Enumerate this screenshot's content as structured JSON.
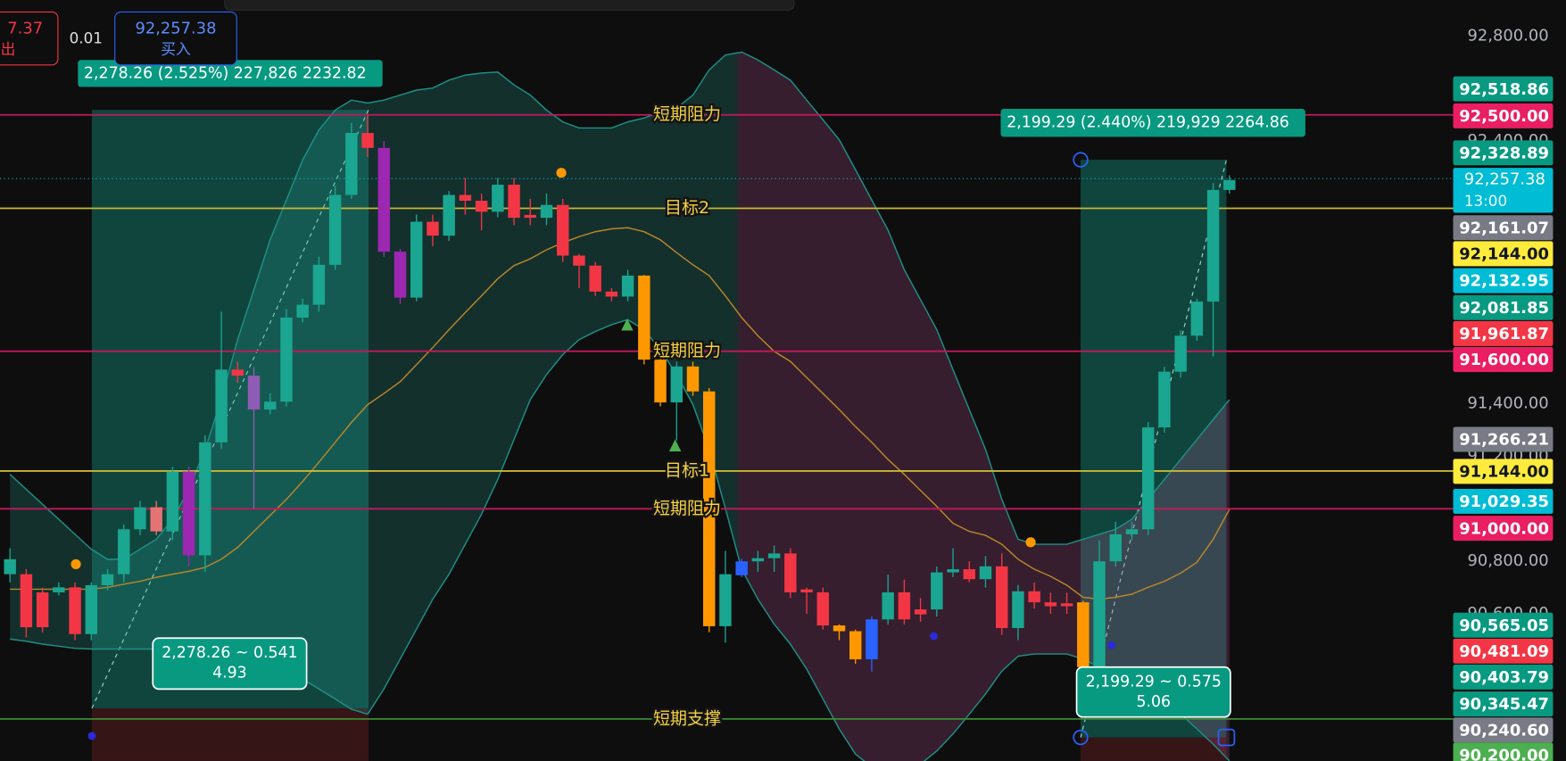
{
  "chart_data": {
    "type": "candlestick",
    "ylim": [
      90040,
      92937
    ],
    "yticks": [
      {
        "value": 92800,
        "label": "92,800.00"
      },
      {
        "value": 92400,
        "label": "92,400.00"
      },
      {
        "value": 91400,
        "label": "91,400.00"
      },
      {
        "value": 91200,
        "label": "91,200.00"
      },
      {
        "value": 90800,
        "label": "90,800.00"
      },
      {
        "value": 90600,
        "label": "90,600.00"
      }
    ],
    "open": [
      90751,
      90751,
      90682,
      90682,
      90701,
      90523,
      90709,
      90751,
      90922,
      91006,
      90914,
      91142,
      90823,
      91253,
      91530,
      91507,
      91378,
      91408,
      91728,
      91777,
      91929,
      92195,
      92431,
      92374,
      91979,
      91804,
      92093,
      92040,
      92195,
      92173,
      92131,
      92234,
      92119,
      92108,
      92157,
      91964,
      91926,
      91827,
      91808,
      91888,
      91568,
      91405,
      91542,
      91447,
      90553,
      90747,
      90800,
      90812,
      90830,
      90693,
      90682,
      90556,
      90534,
      90427,
      90579,
      90682,
      90617,
      90617,
      90758,
      90770,
      90732,
      90781,
      90546,
      90686,
      90644,
      90640,
      90644,
      90397,
      90800,
      90903,
      90922,
      91310,
      91522,
      91659,
      91789,
      92214
    ],
    "high": [
      90850,
      90770,
      90700,
      90720,
      90720,
      90720,
      90770,
      90940,
      91030,
      91030,
      91160,
      91160,
      91280,
      91750,
      91560,
      91540,
      91440,
      91760,
      91800,
      91960,
      92230,
      92470,
      92500,
      92400,
      91990,
      92120,
      92120,
      92210,
      92260,
      92200,
      92260,
      92260,
      92180,
      92200,
      92180,
      91970,
      91940,
      91840,
      91910,
      91890,
      91580,
      91560,
      91560,
      91460,
      90840,
      90810,
      90840,
      90860,
      90850,
      90700,
      90700,
      90560,
      90540,
      90590,
      90750,
      90730,
      90660,
      90780,
      90850,
      90800,
      90820,
      90830,
      90710,
      90720,
      90680,
      90680,
      90650,
      90880,
      90950,
      90950,
      91330,
      91540,
      91680,
      91800,
      92240,
      92270
    ],
    "low": [
      90720,
      90510,
      90530,
      90670,
      90500,
      90500,
      90690,
      90720,
      90900,
      90900,
      90880,
      90780,
      90760,
      91230,
      91480,
      91000,
      91360,
      91390,
      91710,
      91750,
      91910,
      92180,
      92340,
      91960,
      91780,
      91790,
      92000,
      92020,
      92120,
      92060,
      92110,
      92080,
      92080,
      92080,
      91940,
      91840,
      91810,
      91790,
      91790,
      91550,
      91390,
      91260,
      91430,
      90530,
      90490,
      90740,
      90760,
      90760,
      90660,
      90600,
      90540,
      90500,
      90410,
      90380,
      90560,
      90560,
      90570,
      90590,
      90740,
      90720,
      90700,
      90520,
      90500,
      90620,
      90600,
      90600,
      90380,
      90380,
      90780,
      90880,
      90900,
      91290,
      91500,
      91640,
      91580,
      92200
    ],
    "close": [
      90808,
      90549,
      90549,
      90701,
      90523,
      90709,
      90751,
      90922,
      91006,
      90914,
      91142,
      90823,
      91253,
      91530,
      91507,
      91378,
      91408,
      91728,
      91777,
      91929,
      92195,
      92431,
      92374,
      91979,
      91804,
      92093,
      92040,
      92195,
      92173,
      92131,
      92234,
      92108,
      92108,
      92157,
      91964,
      91926,
      91827,
      91808,
      91888,
      91568,
      91405,
      91542,
      91447,
      90553,
      90751,
      90800,
      90812,
      90830,
      90682,
      90682,
      90556,
      90534,
      90427,
      90579,
      90682,
      90579,
      90598,
      90758,
      90770,
      90732,
      90781,
      90546,
      90686,
      90644,
      90629,
      90629,
      90397,
      90800,
      90903,
      90922,
      91310,
      91522,
      91659,
      91789,
      92214,
      92252
    ],
    "colors": [
      "#1aa690",
      "#f23645",
      "#f23645",
      "#1aa690",
      "#f23645",
      "#1aa690",
      "#1aa690",
      "#1aa690",
      "#1aa690",
      "#e57373",
      "#1aa690",
      "#9c27b0",
      "#1aa690",
      "#1aa690",
      "#f23645",
      "#8e5bb5",
      "#1aa690",
      "#1aa690",
      "#1aa690",
      "#1aa690",
      "#1aa690",
      "#1aa690",
      "#f23645",
      "#9c27b0",
      "#9c27b0",
      "#1aa690",
      "#f23645",
      "#1aa690",
      "#f23645",
      "#f23645",
      "#1aa690",
      "#f23645",
      "#f23645",
      "#1aa690",
      "#f23645",
      "#f23645",
      "#f23645",
      "#f23645",
      "#1aa690",
      "#ff9800",
      "#ff9800",
      "#1aa690",
      "#ff9800",
      "#ff9800",
      "#1aa690",
      "#2962ff",
      "#1aa690",
      "#1aa690",
      "#f23645",
      "#f23645",
      "#f23645",
      "#ff9800",
      "#ff9800",
      "#2962ff",
      "#1aa690",
      "#f23645",
      "#f23645",
      "#1aa690",
      "#1aa690",
      "#f23645",
      "#1aa690",
      "#f23645",
      "#1aa690",
      "#f23645",
      "#f23645",
      "#f23645",
      "#ff9800",
      "#1aa690",
      "#1aa690",
      "#1aa690",
      "#1aa690",
      "#1aa690",
      "#1aa690",
      "#1aa690",
      "#1aa690",
      "#1aa690"
    ],
    "band_upper": {
      "color": "#1f8f86",
      "values": [
        91131,
        91074,
        91017,
        90960,
        90903,
        90846,
        90808,
        90808,
        90846,
        90884,
        90960,
        91074,
        91226,
        91416,
        91644,
        91834,
        92024,
        92176,
        92328,
        92442,
        92518,
        92556,
        92545,
        92556,
        92575,
        92594,
        92602,
        92632,
        92651,
        92659,
        92663,
        92614,
        92575,
        92518,
        92473,
        92450,
        92450,
        92450,
        92473,
        92488,
        92511,
        92526,
        92575,
        92671,
        92728,
        92739,
        92709,
        92671,
        92632,
        92556,
        92481,
        92405,
        92291,
        92176,
        92062,
        91910,
        91796,
        91682,
        91530,
        91378,
        91226,
        91036,
        90884,
        90865,
        90865,
        90865,
        90884,
        90903,
        90922,
        90960,
        91036,
        91112,
        91188,
        91264,
        91340,
        91416
      ]
    },
    "band_basis": {
      "color": "#b8862b",
      "values": [
        90694,
        90694,
        90694,
        90694,
        90694,
        90694,
        90701,
        90713,
        90724,
        90739,
        90751,
        90762,
        90777,
        90808,
        90853,
        90914,
        90975,
        91036,
        91104,
        91177,
        91253,
        91329,
        91397,
        91439,
        91484,
        91549,
        91614,
        91682,
        91747,
        91811,
        91876,
        91926,
        91952,
        91986,
        92013,
        92036,
        92055,
        92066,
        92070,
        92055,
        92024,
        91975,
        91929,
        91888,
        91811,
        91728,
        91659,
        91599,
        91561,
        91500,
        91439,
        91378,
        91313,
        91253,
        91188,
        91131,
        91070,
        91009,
        90945,
        90914,
        90899,
        90865,
        90808,
        90770,
        90743,
        90709,
        90663,
        90656,
        90663,
        90675,
        90701,
        90724,
        90755,
        90796,
        90884,
        90998
      ]
    },
    "band_lower": {
      "color": "#1f8f86",
      "values": [
        90504,
        90496,
        90485,
        90477,
        90469,
        90466,
        90466,
        90466,
        90466,
        90466,
        90466,
        90466,
        90466,
        90458,
        90443,
        90428,
        90405,
        90378,
        90352,
        90314,
        90276,
        90237,
        90218,
        90314,
        90428,
        90542,
        90656,
        90751,
        90865,
        90979,
        91112,
        91264,
        91416,
        91511,
        91587,
        91644,
        91675,
        91701,
        91720,
        91682,
        91606,
        91511,
        91397,
        91226,
        91002,
        90770,
        90656,
        90561,
        90485,
        90390,
        90276,
        90162,
        90066,
        90017,
        90009,
        90009,
        90028,
        90078,
        90143,
        90218,
        90295,
        90382,
        90439,
        90447,
        90447,
        90447,
        90428,
        90397,
        90371,
        90340,
        90306,
        90268,
        90218,
        90162,
        90104,
        90040
      ]
    },
    "levels": [
      {
        "value": 92500,
        "label": "短期阻力",
        "color": "#c2185b"
      },
      {
        "value": 92144,
        "label": "目标2",
        "color": "#c9b836"
      },
      {
        "value": 91600,
        "label": "短期阻力",
        "color": "#c2185b"
      },
      {
        "value": 91144,
        "label": "目标1",
        "color": "#c9b836"
      },
      {
        "value": 91000,
        "label": "短期阻力",
        "color": "#c2185b"
      },
      {
        "value": 90200,
        "label": "短期支撑",
        "color": "#3d8b37"
      }
    ],
    "last_price": {
      "value": 92257.38,
      "label": "92,257.38",
      "time": "13:00",
      "color": "#00bcd4"
    },
    "price_tags": [
      {
        "value": 92518.86,
        "label": "92,518.86",
        "color": "#089981"
      },
      {
        "value": 92500,
        "label": "92,500.00",
        "color": "#e91e63"
      },
      {
        "value": 92328.89,
        "label": "92,328.89",
        "color": "#089981"
      },
      {
        "value": 92161.07,
        "label": "92,161.07",
        "color": "#787b86"
      },
      {
        "value": 92144,
        "label": "92,144.00",
        "color": "#ffeb3b",
        "text_color": "#131722"
      },
      {
        "value": 92132.95,
        "label": "92,132.95",
        "color": "#00bcd4"
      },
      {
        "value": 92081.85,
        "label": "92,081.85",
        "color": "#089981"
      },
      {
        "value": 91961.87,
        "label": "91,961.87",
        "color": "#f23645"
      },
      {
        "value": 91600,
        "label": "91,600.00",
        "color": "#e91e63"
      },
      {
        "value": 91266.21,
        "label": "91,266.21",
        "color": "#787b86"
      },
      {
        "value": 91144,
        "label": "91,144.00",
        "color": "#ffeb3b",
        "text_color": "#131722"
      },
      {
        "value": 91029.35,
        "label": "91,029.35",
        "color": "#00bcd4"
      },
      {
        "value": 91000,
        "label": "91,000.00",
        "color": "#e91e63"
      },
      {
        "value": 90565.05,
        "label": "90,565.05",
        "color": "#089981"
      },
      {
        "value": 90481.09,
        "label": "90,481.09",
        "color": "#f23645"
      },
      {
        "value": 90403.79,
        "label": "90,403.79",
        "color": "#089981"
      },
      {
        "value": 90345.47,
        "label": "90,345.47",
        "color": "#089981"
      },
      {
        "value": 90240.6,
        "label": "90,240.60",
        "color": "#787b86"
      },
      {
        "value": 90200,
        "label": "90,200.00",
        "color": "#4caf50"
      }
    ],
    "measures": [
      {
        "from": 90240.6,
        "to": 92518.86,
        "summary": "2,278.26 (2.525%) 227,826 2232.82",
        "detail": "2,278.26 ~ 0.541",
        "bars": "4.93"
      },
      {
        "from": 90129.6,
        "to": 92328.89,
        "summary": "2,199.29 (2.440%) 219,929 2264.86",
        "detail": "2,199.29 ~ 0.575",
        "bars": "5.06"
      }
    ],
    "order_panel": {
      "sell_price": "7.37",
      "sell_label": "出",
      "quantity": "0.01",
      "buy_price": "92,257.38",
      "buy_label": "买入"
    }
  }
}
